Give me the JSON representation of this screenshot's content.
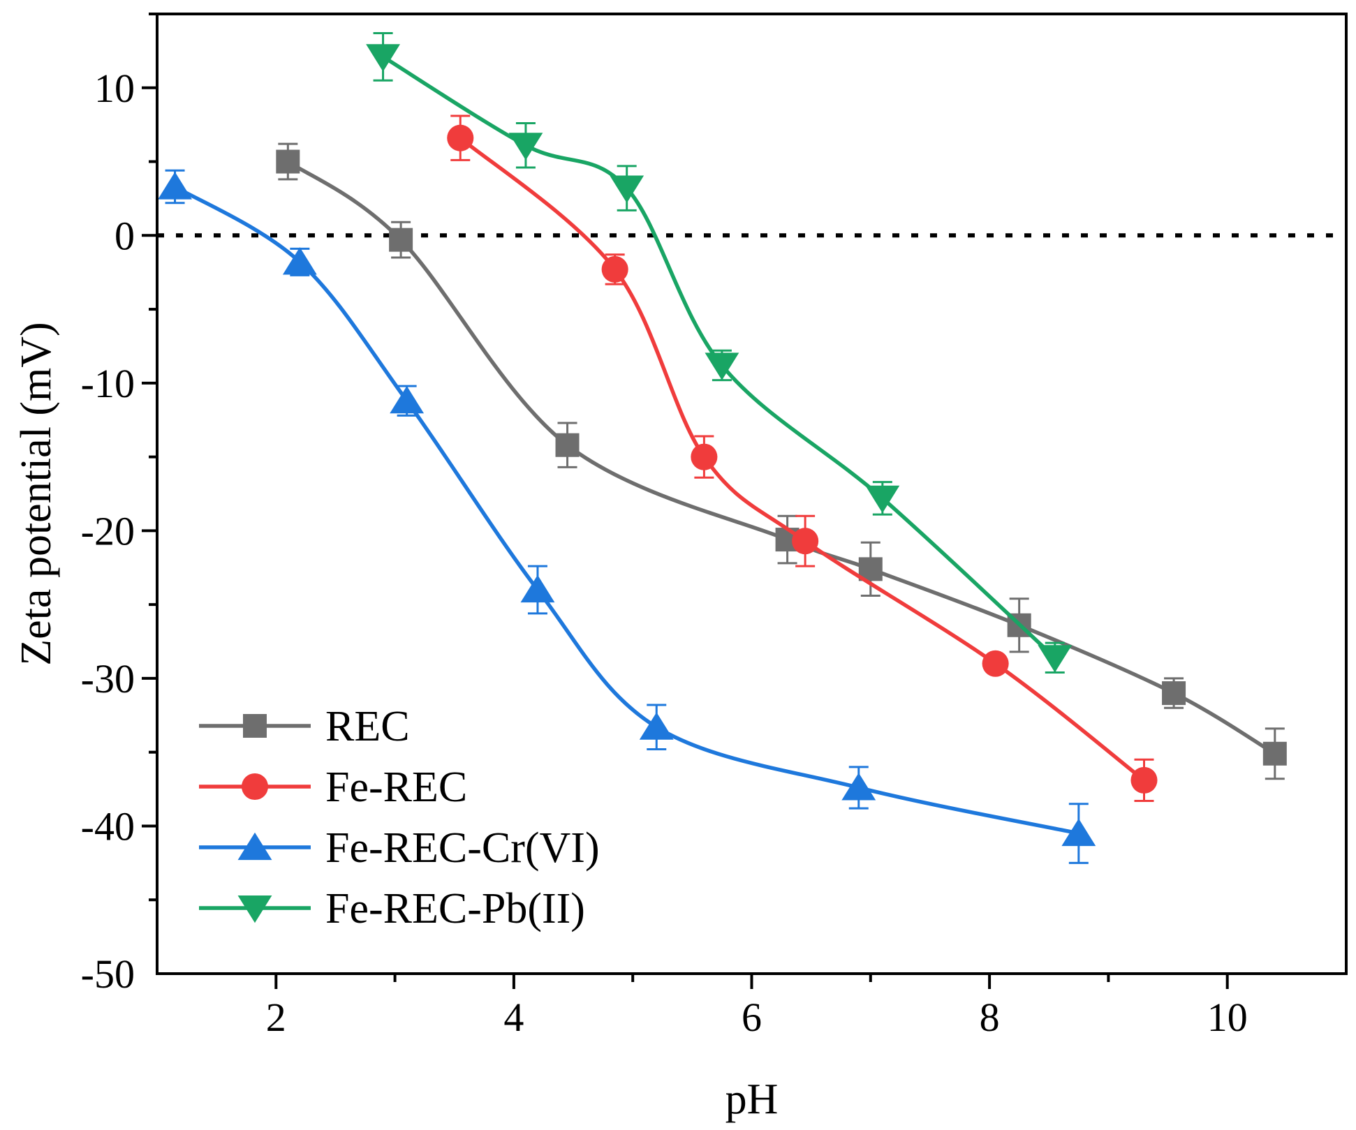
{
  "chart_data": {
    "type": "line",
    "xlabel": "pH",
    "ylabel": "Zeta potential (mV)",
    "xlim": [
      1.0,
      11.0
    ],
    "ylim": [
      -50,
      15
    ],
    "xticks": [
      2,
      4,
      6,
      8,
      10
    ],
    "yticks": [
      10,
      0,
      -10,
      -20,
      -30,
      -40,
      -50
    ],
    "reference_line": {
      "y": 0,
      "style": "dotted"
    },
    "legend_position": "bottom-left",
    "series": [
      {
        "name": "REC",
        "color": "#6e6e6e",
        "marker": "square",
        "x": [
          2.1,
          3.05,
          4.45,
          6.3,
          7.0,
          8.25,
          9.55,
          10.4
        ],
        "y": [
          5.0,
          -0.3,
          -14.2,
          -20.6,
          -22.6,
          -26.4,
          -31.0,
          -35.1
        ],
        "err": [
          1.2,
          1.2,
          1.5,
          1.6,
          1.8,
          1.8,
          1.0,
          1.7
        ]
      },
      {
        "name": "Fe-REC",
        "color": "#f03c3c",
        "marker": "circle",
        "x": [
          3.55,
          4.85,
          5.6,
          6.45,
          8.05,
          9.3
        ],
        "y": [
          6.6,
          -2.3,
          -15.0,
          -20.7,
          -29.0,
          -36.9
        ],
        "err": [
          1.5,
          1.0,
          1.4,
          1.7,
          0.5,
          1.4
        ]
      },
      {
        "name": "Fe-REC-Cr(VI)",
        "color": "#1e78dc",
        "marker": "triangle-up",
        "x": [
          1.15,
          2.2,
          3.1,
          4.2,
          5.2,
          6.9,
          8.75
        ],
        "y": [
          3.3,
          -1.8,
          -11.2,
          -24.0,
          -33.3,
          -37.4,
          -40.5
        ],
        "err": [
          1.1,
          0.9,
          1.0,
          1.6,
          1.5,
          1.4,
          2.0
        ]
      },
      {
        "name": "Fe-REC-Pb(II)",
        "color": "#19a564",
        "marker": "triangle-down",
        "x": [
          2.9,
          4.1,
          4.95,
          5.75,
          7.1,
          8.55
        ],
        "y": [
          12.1,
          6.1,
          3.2,
          -8.8,
          -17.8,
          -28.6
        ],
        "err": [
          1.6,
          1.5,
          1.5,
          1.0,
          1.1,
          1.0
        ]
      }
    ]
  }
}
